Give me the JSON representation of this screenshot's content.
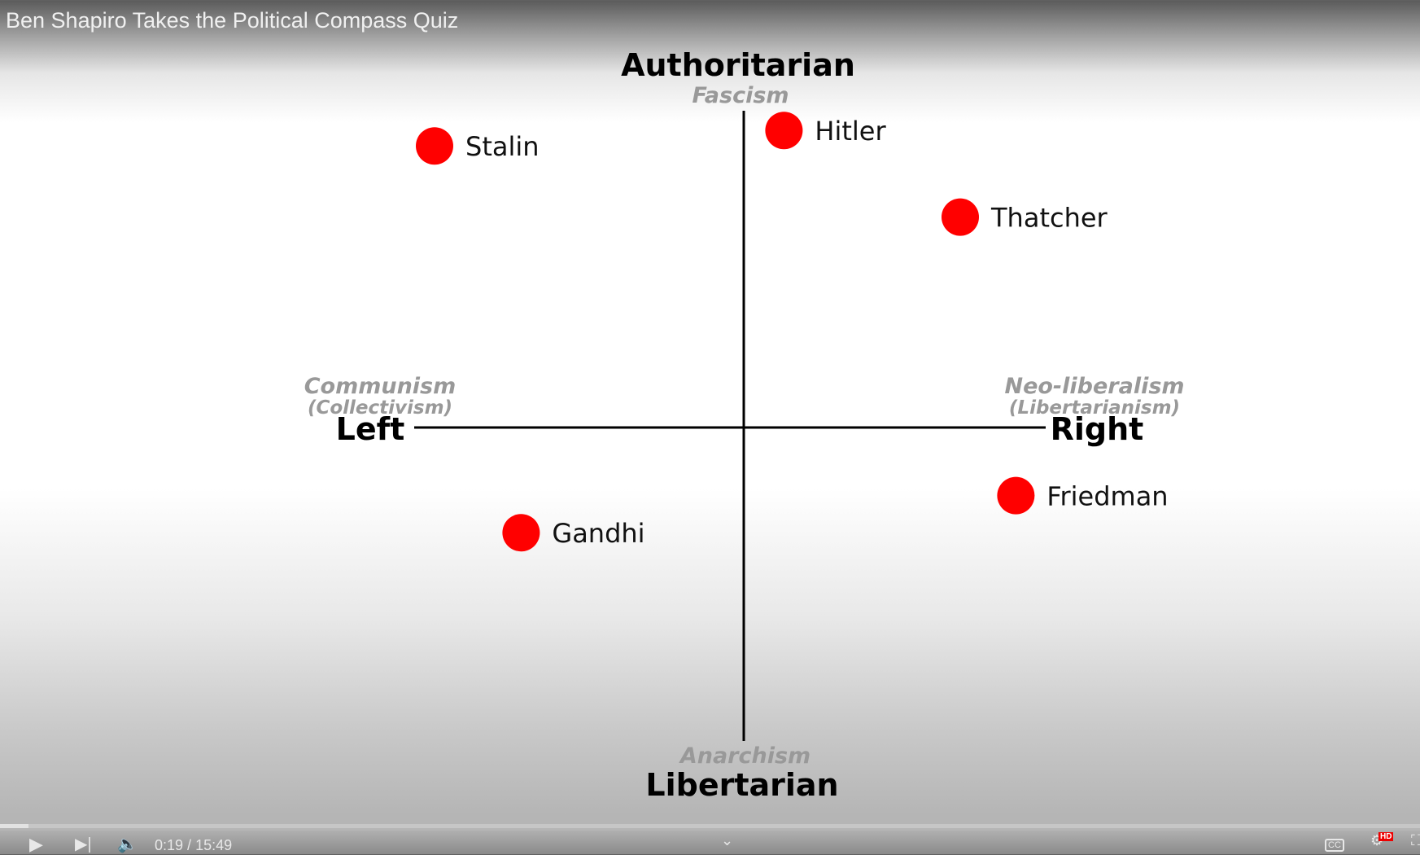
{
  "video": {
    "title": "Ben Shapiro Takes the Political Compass Quiz"
  },
  "player": {
    "time_current": "0:19",
    "time_total": "15:49",
    "time_separator": " / ",
    "progress_fraction": 0.02,
    "hd_badge": "HD",
    "cc_label": "CC",
    "icons": [
      "play-icon",
      "next-icon",
      "volume-icon",
      "chevron-down-icon",
      "captions-icon",
      "settings-icon",
      "fullscreen-icon"
    ]
  },
  "chart_data": {
    "type": "scatter",
    "axes": {
      "top": "Authoritarian",
      "top_sub": "Fascism",
      "bottom": "Libertarian",
      "bottom_sub": "Anarchism",
      "left": "Left",
      "left_sub": "Communism",
      "left_sub2": "(Collectivism)",
      "right": "Right",
      "right_sub": "Neo-liberalism",
      "right_sub2": "(Libertarianism)"
    },
    "xlim": [
      -10,
      10
    ],
    "ylim": [
      -10,
      10
    ],
    "point_color": "#ff0000",
    "points": [
      {
        "label": "Stalin",
        "x": -10,
        "y": 9.1
      },
      {
        "label": "Hitler",
        "x": 1.3,
        "y": 9.6
      },
      {
        "label": "Thatcher",
        "x": 7.0,
        "y": 6.8
      },
      {
        "label": "Gandhi",
        "x": -7.2,
        "y": -3.4
      },
      {
        "label": "Friedman",
        "x": 8.8,
        "y": -2.2
      }
    ]
  }
}
